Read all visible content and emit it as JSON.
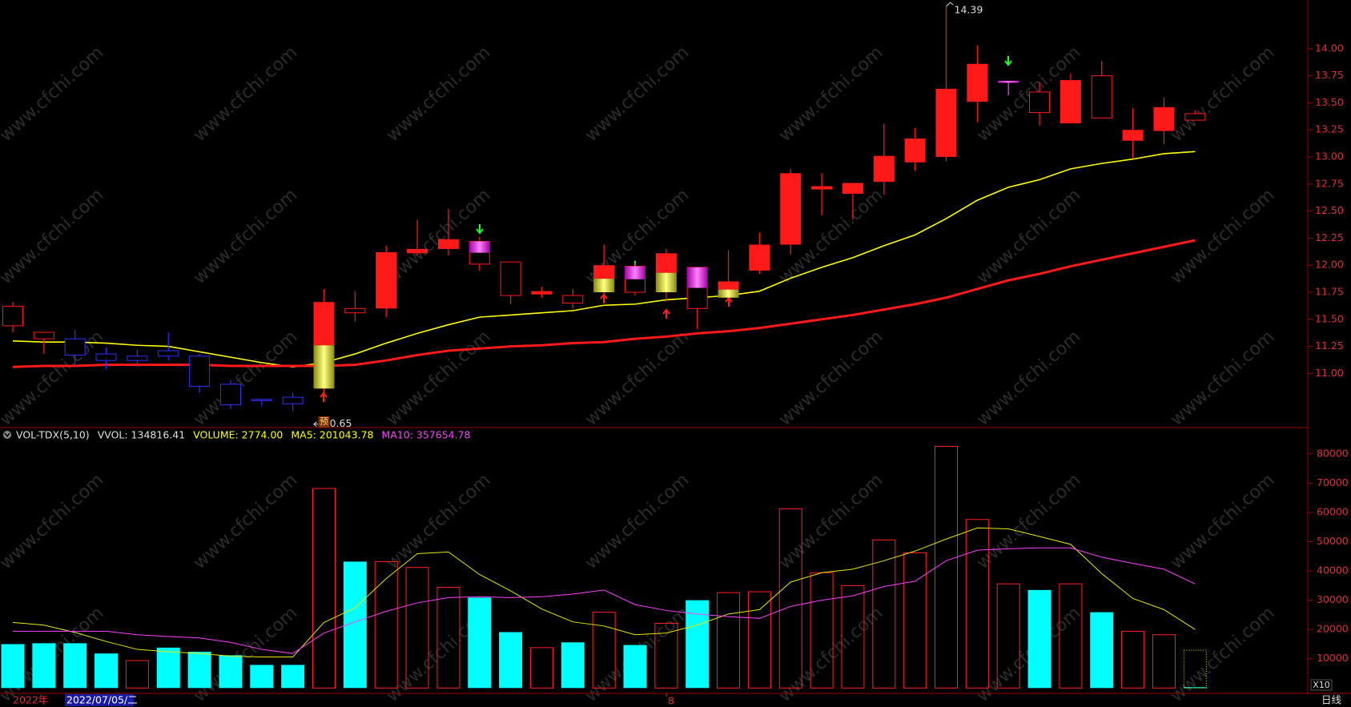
{
  "chart_data": {
    "type": "candlestick",
    "watermark": "www.cfchi.com",
    "candles": {
      "open": [
        11.62,
        11.38,
        11.32,
        11.18,
        11.16,
        11.21,
        11.16,
        10.9,
        10.76,
        10.78,
        10.86,
        11.56,
        11.6,
        12.11,
        12.15,
        12.22,
        12.03,
        11.76,
        11.65,
        11.75,
        11.99,
        11.75,
        11.98,
        11.7,
        11.95,
        12.19,
        12.7,
        12.66,
        12.77,
        12.95,
        13.0,
        13.51,
        13.7,
        13.6,
        13.31,
        13.75,
        13.15,
        13.24,
        13.34
      ],
      "high": [
        11.66,
        11.38,
        11.4,
        11.24,
        11.22,
        11.38,
        11.18,
        10.94,
        10.76,
        10.82,
        11.78,
        11.76,
        12.18,
        12.42,
        12.52,
        12.26,
        12.03,
        11.8,
        11.78,
        12.19,
        12.02,
        12.15,
        11.98,
        12.14,
        12.3,
        12.89,
        12.85,
        12.76,
        13.31,
        13.27,
        14.39,
        14.03,
        13.7,
        13.69,
        13.77,
        13.89,
        13.45,
        13.55,
        13.43
      ],
      "low": [
        11.38,
        11.18,
        11.06,
        11.04,
        11.06,
        11.12,
        10.82,
        10.67,
        10.7,
        10.65,
        10.8,
        11.48,
        11.52,
        12.09,
        12.09,
        11.95,
        11.64,
        11.7,
        11.6,
        11.72,
        11.72,
        11.66,
        11.41,
        11.66,
        11.92,
        12.1,
        12.46,
        12.42,
        12.65,
        12.87,
        12.96,
        13.32,
        13.57,
        13.29,
        13.31,
        13.36,
        12.99,
        13.12,
        13.34
      ],
      "close": [
        11.44,
        11.32,
        11.17,
        11.12,
        11.12,
        11.16,
        10.88,
        10.71,
        10.75,
        10.72,
        11.66,
        11.6,
        12.12,
        12.15,
        12.24,
        12.01,
        11.72,
        11.73,
        11.72,
        12.0,
        11.75,
        12.11,
        11.6,
        11.85,
        12.19,
        12.85,
        12.73,
        12.76,
        13.01,
        13.17,
        13.63,
        13.86,
        13.7,
        13.41,
        13.71,
        13.36,
        13.25,
        13.46,
        13.4
      ],
      "styles": [
        "redHollow",
        "redHollow",
        "blue",
        "blue",
        "blue",
        "blue",
        "blue",
        "blue",
        "blue",
        "blue",
        "redYellow",
        "redHollow",
        "red",
        "red",
        "red",
        "magenta",
        "redHollow",
        "red",
        "redHollow",
        "redYellow",
        "magenta",
        "redYellow",
        "magenta",
        "redYellow",
        "red",
        "red",
        "red",
        "red",
        "red",
        "red",
        "red",
        "red",
        "magenta",
        "redHollow",
        "red",
        "redHollow",
        "red",
        "red",
        "redHollow"
      ]
    },
    "ma_lines": [
      {
        "color": "#ffff00",
        "width": 1.6,
        "values": [
          11.3,
          11.29,
          11.29,
          11.28,
          11.26,
          11.25,
          11.2,
          11.15,
          11.1,
          11.06,
          11.1,
          11.18,
          11.28,
          11.37,
          11.45,
          11.52,
          11.54,
          11.56,
          11.58,
          11.63,
          11.64,
          11.68,
          11.7,
          11.72,
          11.76,
          11.88,
          11.98,
          12.07,
          12.18,
          12.28,
          12.43,
          12.6,
          12.72,
          12.79,
          12.89,
          12.94,
          12.98,
          13.03,
          13.05
        ]
      },
      {
        "color": "#ff1a1a",
        "width": 3,
        "values": [
          11.06,
          11.07,
          11.07,
          11.08,
          11.08,
          11.08,
          11.08,
          11.07,
          11.07,
          11.07,
          11.07,
          11.08,
          11.12,
          11.17,
          11.21,
          11.23,
          11.25,
          11.26,
          11.28,
          11.29,
          11.32,
          11.34,
          11.37,
          11.39,
          11.42,
          11.46,
          11.5,
          11.54,
          11.59,
          11.64,
          11.7,
          11.78,
          11.86,
          11.92,
          11.99,
          12.05,
          12.11,
          12.17,
          12.23
        ]
      }
    ],
    "ylim": [
      10.5,
      14.45
    ],
    "yticks": [
      {
        "value": 11,
        "label": "11.00"
      },
      {
        "value": 11.25,
        "label": "11.25"
      },
      {
        "value": 11.5,
        "label": "11.50"
      },
      {
        "value": 11.75,
        "label": "11.75"
      },
      {
        "value": 12,
        "label": "12.00"
      },
      {
        "value": 12.25,
        "label": "12.25"
      },
      {
        "value": 12.5,
        "label": "12.50"
      },
      {
        "value": 12.75,
        "label": "12.75"
      },
      {
        "value": 13,
        "label": "13.00"
      },
      {
        "value": 13.25,
        "label": "13.25"
      },
      {
        "value": 13.5,
        "label": "13.50"
      },
      {
        "value": 13.75,
        "label": "13.75"
      },
      {
        "value": 14,
        "label": "14.00"
      }
    ],
    "annotations": {
      "high": 14.39,
      "low": 10.65,
      "mark": "预"
    },
    "volume": {
      "header": [
        "VOL-TDX(5,10)",
        "VVOL: 134816.41",
        "VOLUME: 2774.00",
        "MA5: 201043.78",
        "MA10: 357654.78"
      ],
      "header_colors": [
        "#e0e0e0",
        "#e0e0e0",
        "#ffff00",
        "#ffff00",
        "#ff40ff"
      ],
      "values": [
        15000,
        15300,
        15300,
        11800,
        9400,
        13800,
        12400,
        11200,
        7900,
        7900,
        68200,
        43200,
        43200,
        41200,
        34400,
        30900,
        19100,
        13800,
        15600,
        25900,
        14700,
        22100,
        30000,
        32600,
        32900,
        61200,
        39400,
        35000,
        50600,
        46200,
        82600,
        57600,
        35600,
        33500,
        35600,
        25900,
        19400,
        18200,
        277.4
      ],
      "styles": [
        "down",
        "down",
        "down",
        "down",
        "up",
        "down",
        "down",
        "down",
        "down",
        "down",
        "up",
        "down",
        "up",
        "up",
        "up",
        "down",
        "down",
        "up",
        "down",
        "up",
        "down",
        "up",
        "down",
        "up",
        "up",
        "up",
        "up",
        "up",
        "up",
        "up",
        "up",
        "up",
        "up",
        "down",
        "up",
        "down",
        "up",
        "up",
        "down"
      ],
      "projected": 12900,
      "ma5": {
        "color": "#e8e800",
        "values": [
          22400,
          21500,
          19000,
          15900,
          13200,
          12400,
          11800,
          10900,
          10600,
          10600,
          22400,
          27400,
          37400,
          45900,
          46500,
          38800,
          33200,
          27000,
          22600,
          21200,
          18200,
          18800,
          21500,
          25300,
          26800,
          36200,
          39400,
          40600,
          43500,
          46800,
          50900,
          54700,
          54400,
          51800,
          49100,
          39100,
          30600,
          26800,
          20000
        ]
      },
      "ma10": {
        "color": "#ff40ff",
        "values": [
          19400,
          19400,
          19400,
          19400,
          18200,
          17600,
          17100,
          15600,
          13200,
          11800,
          18800,
          22600,
          26200,
          29100,
          30900,
          31200,
          30900,
          31200,
          32100,
          33500,
          28500,
          26500,
          25300,
          24400,
          23800,
          27900,
          30000,
          31500,
          34700,
          36500,
          43500,
          47100,
          47600,
          47900,
          47900,
          44700,
          42600,
          40600,
          35600
        ]
      },
      "ylim": [
        0,
        89000
      ],
      "yticks": [
        10000,
        20000,
        30000,
        40000,
        50000,
        60000,
        70000,
        80000
      ],
      "unit": "X10"
    },
    "footer": {
      "year": "2022年",
      "date": "2022/07/05/二",
      "month": "8",
      "period": "日线"
    }
  }
}
